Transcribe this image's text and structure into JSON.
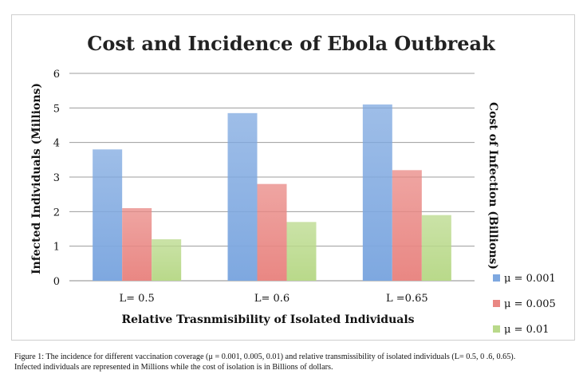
{
  "chart_data": {
    "type": "bar",
    "title": "Cost and Incidence of Ebola Outbreak",
    "xlabel": "Relative Trasnmisibility of Isolated Individuals",
    "ylabel": "Infected Individuals (Millions)",
    "y2label": "Cost of Infection (Billions)",
    "categories": [
      "L= 0.5",
      "L= 0.6",
      "L =0.65"
    ],
    "ylim": [
      0,
      6
    ],
    "yticks": [
      0,
      1,
      2,
      3,
      4,
      5,
      6
    ],
    "grid": true,
    "legend": "right",
    "series": [
      {
        "name": "μ = 0.001",
        "values": [
          3.8,
          4.85,
          5.1
        ],
        "color": "#7ea8e0"
      },
      {
        "name": "μ = 0.005",
        "values": [
          2.1,
          2.8,
          3.2
        ],
        "color": "#e98783"
      },
      {
        "name": "μ = 0.01",
        "values": [
          1.2,
          1.7,
          1.9
        ],
        "color": "#b9d98a"
      }
    ]
  },
  "caption": {
    "line1": "Figure 1: The incidence for different vaccination coverage (μ = 0.001, 0.005, 0.01) and relative transmissibility of isolated individuals (L= 0.5, 0 .6, 0.65).",
    "line2": "Infected individuals are represented in Millions while the cost of isolation is in Billions of dollars."
  }
}
